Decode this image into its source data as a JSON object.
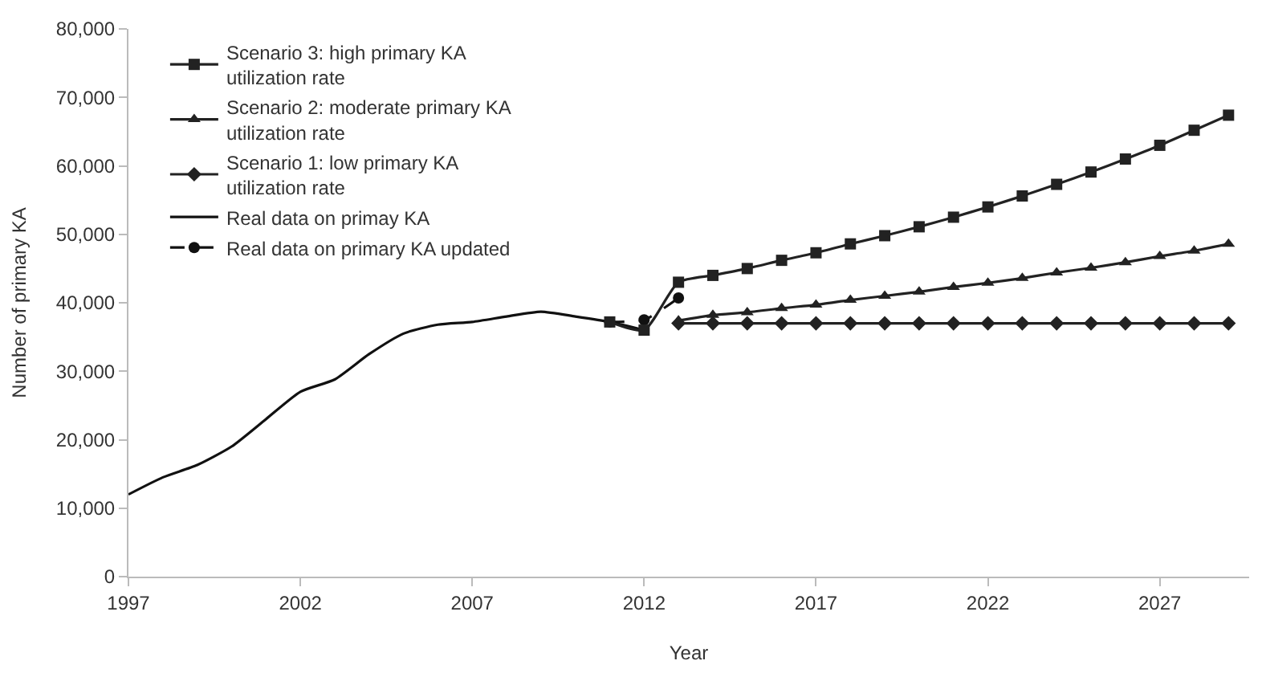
{
  "chart_data": {
    "type": "line",
    "xlabel": "Year",
    "ylabel": "Number of primary KA",
    "xlim": [
      1997,
      2029.6
    ],
    "xticks": [
      1997,
      2002,
      2007,
      2012,
      2017,
      2022,
      2027
    ],
    "ylim": [
      0,
      80000
    ],
    "yticks": [
      {
        "value": 0,
        "label": "0"
      },
      {
        "value": 10000,
        "label": "10,000"
      },
      {
        "value": 20000,
        "label": "20,000"
      },
      {
        "value": 30000,
        "label": "30,000"
      },
      {
        "value": 40000,
        "label": "40,000"
      },
      {
        "value": 50000,
        "label": "50,000"
      },
      {
        "value": 60000,
        "label": "60,000"
      },
      {
        "value": 70000,
        "label": "70,000"
      },
      {
        "value": 80000,
        "label": "80,000"
      }
    ],
    "legend": "top left",
    "series": [
      {
        "name": "Scenario 3: high primary KA utilization rate",
        "color": "#222222",
        "marker": "square",
        "line_style": "solid",
        "x": [
          2011,
          2012,
          2013,
          2014,
          2015,
          2016,
          2017,
          2018,
          2019,
          2020,
          2021,
          2022,
          2023,
          2024,
          2025,
          2026,
          2027,
          2028,
          2029
        ],
        "values": [
          37200,
          36000,
          43000,
          44000,
          45000,
          46200,
          47300,
          48600,
          49800,
          51100,
          52500,
          54000,
          55600,
          57300,
          59100,
          61000,
          63000,
          65200,
          67400
        ]
      },
      {
        "name": "Scenario 2: moderate primary KA utilization rate",
        "color": "#222222",
        "marker": "triangle",
        "line_style": "solid",
        "x": [
          2013,
          2014,
          2015,
          2016,
          2017,
          2018,
          2019,
          2020,
          2021,
          2022,
          2023,
          2024,
          2025,
          2026,
          2027,
          2028,
          2029
        ],
        "values": [
          37400,
          38200,
          38600,
          39200,
          39700,
          40400,
          41000,
          41600,
          42300,
          42900,
          43600,
          44400,
          45100,
          45900,
          46800,
          47600,
          48600
        ]
      },
      {
        "name": "Scenario 1: low primary KA utilization rate",
        "color": "#222222",
        "marker": "diamond",
        "line_style": "solid",
        "x": [
          2013,
          2014,
          2015,
          2016,
          2017,
          2018,
          2019,
          2020,
          2021,
          2022,
          2023,
          2024,
          2025,
          2026,
          2027,
          2028,
          2029
        ],
        "values": [
          37000,
          37000,
          37000,
          37000,
          37000,
          37000,
          37000,
          37000,
          37000,
          37000,
          37000,
          37000,
          37000,
          37000,
          37000,
          37000,
          37000
        ]
      },
      {
        "name": "Real data on primay KA",
        "color": "#111111",
        "marker": "none",
        "line_style": "solid",
        "x": [
          1997,
          1998,
          1999,
          2000,
          2001,
          2002,
          2003,
          2004,
          2005,
          2006,
          2007,
          2008,
          2009,
          2010,
          2011,
          2012
        ],
        "values": [
          12000,
          14500,
          16300,
          19000,
          23000,
          27000,
          28800,
          32500,
          35500,
          36800,
          37200,
          38000,
          38700,
          38000,
          37200,
          36000
        ]
      },
      {
        "name": "Real data on primary KA updated",
        "color": "#111111",
        "marker": "circle",
        "line_style": "dashed",
        "x": [
          2011,
          2012,
          2013
        ],
        "values": [
          37200,
          37500,
          40700
        ]
      }
    ]
  }
}
